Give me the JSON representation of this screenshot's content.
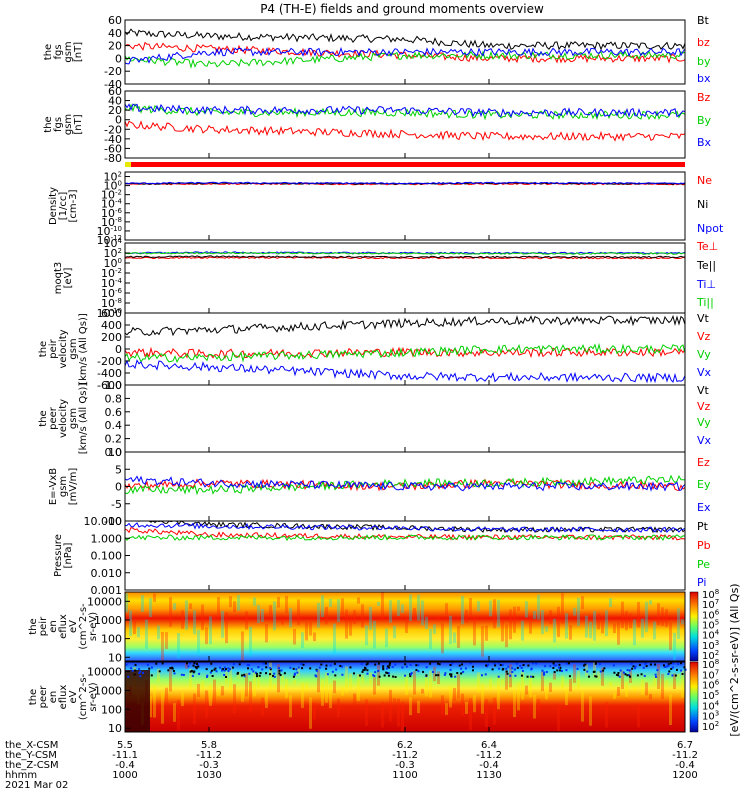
{
  "title": "P4 (TH-E) fields and ground moments overview",
  "date_label": "2021 Mar 02",
  "colorbar_label": "[eV/(cm^2-s-sr-eV)] (All Qs)",
  "colorbar_top_ticks": [
    "10^8",
    "10^7",
    "10^6",
    "10^5",
    "10^4",
    "10^3",
    "10^2"
  ],
  "colorbar_bottom_ticks": [
    "10^8",
    "10^7",
    "10^6",
    "10^5",
    "10^4",
    "10^3",
    "10^2"
  ],
  "orbit_rows": [
    {
      "label": "the_X-CSM",
      "values": [
        "5.5",
        "5.8",
        "6.2",
        "6.4",
        "6.7"
      ]
    },
    {
      "label": "the_Y-CSM",
      "values": [
        "-11.1",
        "-11.2",
        "-11.2",
        "-11.2",
        "-11.2"
      ]
    },
    {
      "label": "the_Z-CSM",
      "values": [
        "-0.4",
        "-0.3",
        "-0.3",
        "-0.4",
        "-0.4"
      ]
    },
    {
      "label": "hhmm",
      "values": [
        "1000",
        "1030",
        "1100",
        "1130",
        "1200"
      ]
    }
  ],
  "colors": {
    "black": "#000000",
    "red": "#ff0000",
    "green": "#00d000",
    "blue": "#0000ff",
    "yellow": "#e8e800"
  },
  "chart_data": [
    {
      "type": "line",
      "ylabel": [
        "the",
        "fgs",
        "gsm",
        "[nT]"
      ],
      "ylim": [
        -40,
        60
      ],
      "ticks": [
        "60",
        "40",
        "20",
        "0",
        "-20",
        "-40"
      ],
      "tick_values": [
        60,
        40,
        20,
        0,
        -20,
        -40
      ],
      "series": [
        {
          "name": "Bt",
          "color": "#000000",
          "x": [
            1000,
            1030,
            1100,
            1130,
            1200
          ],
          "values": [
            40,
            35,
            30,
            20,
            20
          ]
        },
        {
          "name": "bz",
          "color": "#ff0000",
          "x": [
            1000,
            1030,
            1100,
            1130,
            1200
          ],
          "values": [
            20,
            15,
            5,
            0,
            0
          ]
        },
        {
          "name": "by",
          "color": "#00d000",
          "x": [
            1000,
            1030,
            1100,
            1130,
            1200
          ],
          "values": [
            0,
            -10,
            5,
            5,
            5
          ]
        },
        {
          "name": "bx",
          "color": "#0000ff",
          "x": [
            1000,
            1030,
            1100,
            1130,
            1200
          ],
          "values": [
            -5,
            10,
            10,
            10,
            10
          ]
        }
      ]
    },
    {
      "type": "line",
      "ylabel": [
        "the",
        "fgs",
        "gsm",
        "[nT]"
      ],
      "ylim": [
        -80,
        60
      ],
      "ticks": [
        "60",
        "40",
        "20",
        "0",
        "-20",
        "-40",
        "-60",
        "-80"
      ],
      "tick_values": [
        60,
        40,
        20,
        0,
        -20,
        -40,
        -60,
        -80
      ],
      "series": [
        {
          "name": "Bz",
          "color": "#ff0000",
          "x": [
            1000,
            1030,
            1100,
            1130,
            1200
          ],
          "values": [
            -10,
            -20,
            -30,
            -35,
            -35
          ]
        },
        {
          "name": "By",
          "color": "#00d000",
          "x": [
            1000,
            1030,
            1100,
            1130,
            1200
          ],
          "values": [
            25,
            15,
            15,
            10,
            10
          ]
        },
        {
          "name": "Bx",
          "color": "#0000ff",
          "x": [
            1000,
            1030,
            1100,
            1130,
            1200
          ],
          "values": [
            25,
            20,
            20,
            15,
            15
          ]
        }
      ]
    },
    {
      "type": "line",
      "scale": "log",
      "ylabel": [
        "Density",
        "[1/cc]",
        "[cm-3]"
      ],
      "ylim_exp": [
        -12,
        3
      ],
      "ticks": [
        "10^2",
        "10^0",
        "10^-2",
        "10^-4",
        "10^-6",
        "10^-8",
        "10^-10",
        "10^-12"
      ],
      "tick_values": [
        2,
        0,
        -2,
        -4,
        -6,
        -8,
        -10,
        -12
      ],
      "series": [
        {
          "name": "Ne",
          "color": "#ff0000",
          "x": [
            1000,
            1030,
            1100,
            1130,
            1200
          ],
          "values": [
            0.3,
            0.4,
            0.3,
            0.4,
            0.3
          ]
        },
        {
          "name": "Ni",
          "color": "#000000",
          "x": [
            1000,
            1030,
            1100,
            1130,
            1200
          ],
          "values": [
            0.4,
            0.5,
            0.4,
            0.5,
            0.4
          ]
        },
        {
          "name": "Npot",
          "color": "#0000ff",
          "x": [
            1000,
            1030,
            1100,
            1130,
            1200
          ],
          "values": [
            0.5,
            0.6,
            0.5,
            0.6,
            0.5
          ]
        }
      ]
    },
    {
      "type": "line",
      "scale": "log",
      "ylabel": [
        "moqt3",
        "[eV]"
      ],
      "ylim_exp": [
        -10,
        4
      ],
      "ticks": [
        "10^4",
        "10^2",
        "10^0",
        "10^-2",
        "10^-4",
        "10^-6",
        "10^-8",
        "10^-10"
      ],
      "tick_values": [
        4,
        2,
        0,
        -2,
        -4,
        -6,
        -8,
        -10
      ],
      "series": [
        {
          "name": "Te⊥",
          "color": "#ff0000",
          "x": [
            1000,
            1030,
            1100,
            1130,
            1200
          ],
          "values": [
            1.0,
            1.1,
            1.0,
            1.0,
            1.0
          ]
        },
        {
          "name": "Te||",
          "color": "#000000",
          "x": [
            1000,
            1030,
            1100,
            1130,
            1200
          ],
          "values": [
            1.2,
            1.3,
            1.2,
            1.2,
            1.2
          ]
        },
        {
          "name": "Ti⊥",
          "color": "#0000ff",
          "x": [
            1000,
            1030,
            1100,
            1130,
            1200
          ],
          "values": [
            2.0,
            2.1,
            2.0,
            2.0,
            2.0
          ]
        },
        {
          "name": "Ti||",
          "color": "#00d000",
          "x": [
            1000,
            1030,
            1100,
            1130,
            1200
          ],
          "values": [
            1.9,
            2.0,
            1.9,
            1.9,
            1.9
          ]
        }
      ]
    },
    {
      "type": "line",
      "ylabel": [
        "the",
        "peir",
        "velocity",
        "gsm",
        "[km/s (All Qs)]"
      ],
      "ylim": [
        -600,
        600
      ],
      "ticks": [
        "600",
        "400",
        "200",
        "0",
        "-200",
        "-400",
        "-600"
      ],
      "tick_values": [
        600,
        400,
        200,
        0,
        -200,
        -400,
        -600
      ],
      "series": [
        {
          "name": "Vt",
          "color": "#000000",
          "x": [
            1000,
            1030,
            1100,
            1130,
            1200
          ],
          "values": [
            280,
            320,
            430,
            470,
            480
          ]
        },
        {
          "name": "Vz",
          "color": "#ff0000",
          "x": [
            1000,
            1030,
            1100,
            1130,
            1200
          ],
          "values": [
            -50,
            -80,
            -50,
            -60,
            -50
          ]
        },
        {
          "name": "Vy",
          "color": "#00d000",
          "x": [
            1000,
            1030,
            1100,
            1130,
            1200
          ],
          "values": [
            -150,
            -140,
            -60,
            0,
            0
          ]
        },
        {
          "name": "Vx",
          "color": "#0000ff",
          "x": [
            1000,
            1030,
            1100,
            1130,
            1200
          ],
          "values": [
            -250,
            -300,
            -450,
            -470,
            -480
          ]
        }
      ]
    },
    {
      "type": "line",
      "ylabel": [
        "the",
        "peer",
        "velocity",
        "gsm",
        "[km/s (All Qs)]"
      ],
      "ylim": [
        0,
        1.0
      ],
      "ticks": [
        "1.0",
        "0.8",
        "0.6",
        "0.4",
        "0.2",
        "0.0"
      ],
      "tick_values": [
        1.0,
        0.8,
        0.6,
        0.4,
        0.2,
        0.0
      ],
      "series": [
        {
          "name": "Vt",
          "color": "#000000",
          "x": [],
          "values": []
        },
        {
          "name": "Vz",
          "color": "#ff0000",
          "x": [],
          "values": []
        },
        {
          "name": "Vy",
          "color": "#00d000",
          "x": [],
          "values": []
        },
        {
          "name": "Vx",
          "color": "#0000ff",
          "x": [],
          "values": []
        }
      ]
    },
    {
      "type": "line",
      "ylabel": [
        "E=-VxB",
        "gsm",
        "[mV/m]"
      ],
      "ylim": [
        -10,
        10
      ],
      "ticks": [
        "10",
        "5",
        "0",
        "-5",
        "-10"
      ],
      "tick_values": [
        10,
        5,
        0,
        -5,
        -10
      ],
      "series": [
        {
          "name": "Ez",
          "color": "#ff0000",
          "x": [
            1000,
            1030,
            1100,
            1130,
            1200
          ],
          "values": [
            0,
            1,
            0,
            1,
            0
          ]
        },
        {
          "name": "Ey",
          "color": "#00d000",
          "x": [
            1000,
            1030,
            1100,
            1130,
            1200
          ],
          "values": [
            -1,
            -1,
            1,
            1,
            2
          ]
        },
        {
          "name": "Ex",
          "color": "#0000ff",
          "x": [
            1000,
            1030,
            1100,
            1130,
            1200
          ],
          "values": [
            2,
            1,
            0,
            0,
            0
          ]
        }
      ]
    },
    {
      "type": "line",
      "scale": "log",
      "ylabel": [
        "Pressure",
        "[nPa]"
      ],
      "ylim_exp": [
        -3,
        1
      ],
      "ticks": [
        "10.000",
        "1.000",
        "0.100",
        "0.010",
        "0.001"
      ],
      "tick_values": [
        1,
        0,
        -1,
        -2,
        -3
      ],
      "series": [
        {
          "name": "Pt",
          "color": "#000000",
          "x": [
            1000,
            1030,
            1100,
            1130,
            1200
          ],
          "values": [
            1.2,
            0.8,
            0.6,
            0.5,
            0.5
          ]
        },
        {
          "name": "Pb",
          "color": "#ff0000",
          "x": [
            1000,
            1030,
            1100,
            1130,
            1200
          ],
          "values": [
            0.5,
            0.2,
            0.08,
            0.06,
            0.05
          ]
        },
        {
          "name": "Pe",
          "color": "#00d000",
          "x": [
            1000,
            1030,
            1100,
            1130,
            1200
          ],
          "values": [
            0.03,
            0.04,
            0.05,
            0.05,
            0.05
          ]
        },
        {
          "name": "Pi",
          "color": "#0000ff",
          "x": [
            1000,
            1030,
            1100,
            1130,
            1200
          ],
          "values": [
            0.8,
            0.7,
            0.6,
            0.5,
            0.5
          ]
        }
      ]
    },
    {
      "type": "heatmap",
      "ylabel": [
        "the",
        "peir",
        "en",
        "eflux",
        "eV",
        "(cm^2-s-",
        "sr-eV)"
      ],
      "scale": "log",
      "ticks": [
        "10000",
        "1000",
        "100",
        "10"
      ],
      "tick_values": [
        4,
        3,
        2,
        1
      ],
      "ylim_exp": [
        0.8,
        4.5
      ],
      "x": [
        1000,
        1030,
        1100,
        1130,
        1200
      ]
    },
    {
      "type": "heatmap",
      "ylabel": [
        "the",
        "peer",
        "en",
        "eflux",
        "eV",
        "(cm^2-s-",
        "sr-eV)"
      ],
      "scale": "log",
      "ticks": [
        "10000",
        "1000",
        "100",
        "10"
      ],
      "tick_values": [
        4,
        3,
        2,
        1
      ],
      "ylim_exp": [
        0.8,
        4.5
      ],
      "x": [
        1000,
        1030,
        1100,
        1130,
        1200
      ]
    }
  ]
}
